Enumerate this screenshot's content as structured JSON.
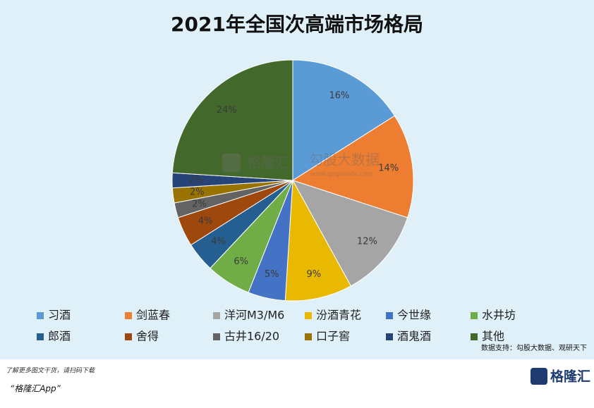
{
  "chart_data": {
    "type": "pie",
    "title": "2021年全国次高端市场格局",
    "categories": [
      "习酒",
      "剑蓝春",
      "洋河M3/M6",
      "汾酒青花",
      "今世缘",
      "水井坊",
      "郎酒",
      "舍得",
      "古井16/20",
      "口子窖",
      "酒鬼酒",
      "其他"
    ],
    "values": [
      16,
      14,
      12,
      9,
      5,
      6,
      4,
      4,
      2,
      2,
      2,
      24
    ],
    "value_labels": [
      "16%",
      "14%",
      "12%",
      "9%",
      "5%",
      "6%",
      "4%",
      "4%",
      "2%",
      "2%",
      "2%",
      "24%"
    ],
    "colors": [
      "#5b9bd5",
      "#ed7d31",
      "#a5a5a5",
      "#e8b900",
      "#4472c4",
      "#70ad47",
      "#255e91",
      "#9e480e",
      "#636363",
      "#997300",
      "#264478",
      "#43682b"
    ],
    "legend": "bottom"
  },
  "source": "数据支持：勾股大数据、观研天下",
  "watermark": {
    "brand": "格隆汇",
    "partner": "勾股大数据",
    "url": "www.gogudata.com"
  },
  "footer": {
    "note": "了解更多图文干货，请扫码下载",
    "app": "“格隆汇App”",
    "logo": "格隆汇"
  }
}
